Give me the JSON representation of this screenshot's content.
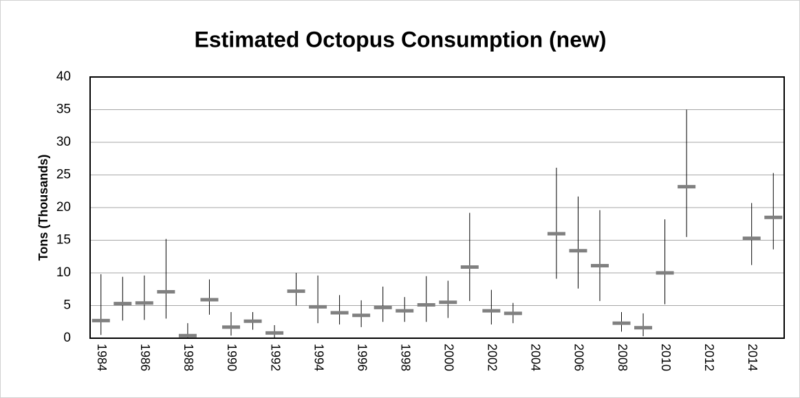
{
  "chart_data": {
    "type": "errorbar",
    "title": "Estimated Octopus Consumption (new)",
    "y_label": "Tons (Thousands)",
    "categories": [
      "1984",
      null,
      "1986",
      null,
      "1988",
      null,
      "1990",
      null,
      "1992",
      null,
      "1994",
      null,
      "1996",
      null,
      "1998",
      null,
      "2000",
      null,
      "2002",
      null,
      "2004",
      null,
      "2006",
      null,
      "2008",
      null,
      "2010",
      null,
      "2012",
      null,
      "2014",
      null
    ],
    "values": [
      2.7,
      5.3,
      5.4,
      7.1,
      0.4,
      5.9,
      1.7,
      2.6,
      0.8,
      7.2,
      4.8,
      3.9,
      3.5,
      4.7,
      4.2,
      5.1,
      5.5,
      10.9,
      4.2,
      3.8,
      null,
      16.0,
      13.4,
      11.1,
      2.3,
      1.6,
      10.0,
      23.2,
      null,
      null,
      15.3,
      18.5
    ],
    "lows": [
      0.5,
      2.7,
      2.8,
      3.0,
      0.0,
      3.6,
      0.4,
      1.3,
      0.1,
      5.0,
      2.3,
      2.1,
      1.7,
      2.5,
      2.5,
      2.5,
      3.1,
      5.7,
      2.1,
      2.3,
      null,
      9.1,
      7.6,
      5.7,
      1.0,
      0.3,
      5.2,
      15.5,
      null,
      null,
      11.2,
      13.6
    ],
    "highs": [
      9.8,
      9.4,
      9.6,
      15.2,
      2.3,
      9.0,
      4.0,
      4.0,
      2.0,
      10.0,
      9.6,
      6.6,
      5.8,
      7.9,
      6.3,
      9.5,
      8.8,
      19.2,
      7.4,
      5.4,
      null,
      26.1,
      21.7,
      19.6,
      4.0,
      3.8,
      18.2,
      35.0,
      null,
      null,
      20.7,
      25.3
    ],
    "color": "#808080",
    "whisker_color": "#000000",
    "ylim": [
      0,
      40
    ],
    "yticks": [
      0,
      5,
      10,
      15,
      20,
      25,
      30,
      35,
      40
    ],
    "grid": true
  }
}
